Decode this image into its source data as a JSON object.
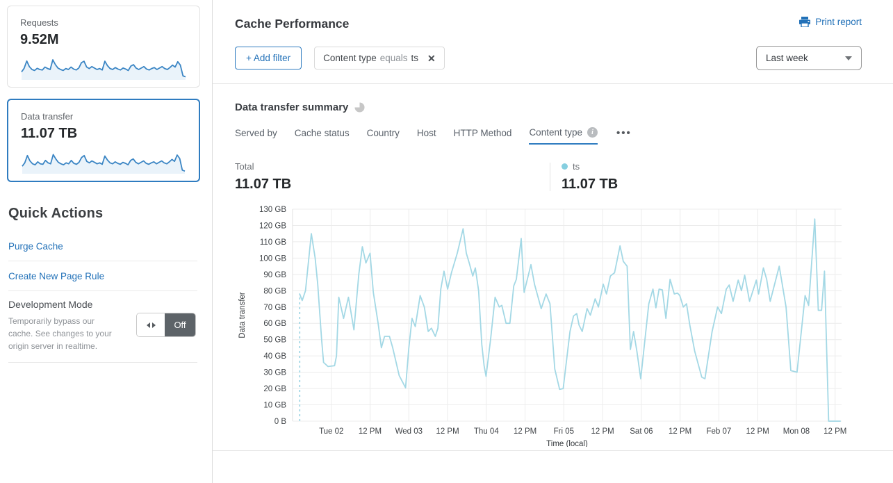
{
  "sidebar": {
    "requests_card": {
      "label": "Requests",
      "value": "9.52M",
      "sparkline": [
        30,
        45,
        75,
        52,
        40,
        36,
        45,
        40,
        38,
        50,
        44,
        40,
        80,
        60,
        46,
        40,
        36,
        44,
        40,
        50,
        42,
        38,
        46,
        68,
        74,
        50,
        44,
        52,
        46,
        40,
        44,
        38,
        74,
        56,
        44,
        40,
        48,
        42,
        38,
        46,
        42,
        36,
        54,
        60,
        46,
        40,
        46,
        52,
        42,
        38,
        44,
        48,
        40,
        46,
        52,
        44,
        40,
        48,
        58,
        50,
        72,
        58,
        14,
        10
      ]
    },
    "data_transfer_card": {
      "label": "Data transfer",
      "value": "11.07 TB",
      "selected": true,
      "sparkline": [
        28,
        42,
        72,
        50,
        38,
        34,
        46,
        38,
        36,
        52,
        42,
        38,
        76,
        58,
        44,
        38,
        34,
        42,
        38,
        52,
        40,
        36,
        44,
        64,
        72,
        48,
        42,
        50,
        44,
        38,
        42,
        36,
        70,
        54,
        42,
        38,
        46,
        40,
        36,
        44,
        40,
        34,
        52,
        58,
        44,
        38,
        44,
        50,
        40,
        36,
        42,
        46,
        38,
        44,
        50,
        42,
        38,
        46,
        56,
        48,
        74,
        60,
        12,
        8
      ]
    },
    "quick_actions": {
      "title": "Quick Actions",
      "links": [
        "Purge Cache",
        "Create New Page Rule"
      ],
      "dev_mode": {
        "title": "Development Mode",
        "description": "Temporarily bypass our cache. See changes to your origin server in realtime.",
        "toggle_state": "Off"
      }
    }
  },
  "header": {
    "title": "Cache Performance",
    "print_label": "Print report"
  },
  "filters": {
    "add_label": "+ Add filter",
    "chip": {
      "field": "Content type",
      "operator": "equals",
      "value": "ts"
    },
    "time_range": "Last week"
  },
  "summary": {
    "title": "Data transfer summary",
    "tabs": [
      {
        "label": "Served by"
      },
      {
        "label": "Cache status"
      },
      {
        "label": "Country"
      },
      {
        "label": "Host"
      },
      {
        "label": "HTTP Method"
      },
      {
        "label": "Content type",
        "active": true,
        "has_info": true
      }
    ],
    "more_label": "•••",
    "totals": {
      "total_label": "Total",
      "total_value": "11.07 TB",
      "series_label": "ts",
      "series_value": "11.07 TB"
    }
  },
  "colors": {
    "accent_blue": "#2271b8",
    "selected_border": "#2f7cc0",
    "chart_line": "#a3d8e5",
    "legend_dot": "#86cfe0",
    "sparkline_stroke": "#3a85c4",
    "sparkline_fill": "#eaf3fa",
    "grid": "#ececec"
  },
  "chart_data": {
    "type": "line",
    "title": "Data transfer summary — ts",
    "xlabel": "Time (local)",
    "ylabel": "Data transfer",
    "x_unit": "hours from start of week shown",
    "xlim": [
      -2,
      168
    ],
    "ylim": [
      0,
      130
    ],
    "grid": true,
    "dashed_start": true,
    "xticks": [
      {
        "hour": 10,
        "label": "Tue 02"
      },
      {
        "hour": 22,
        "label": "12 PM"
      },
      {
        "hour": 34,
        "label": "Wed 03"
      },
      {
        "hour": 46,
        "label": "12 PM"
      },
      {
        "hour": 58,
        "label": "Thu 04"
      },
      {
        "hour": 70,
        "label": "12 PM"
      },
      {
        "hour": 82,
        "label": "Fri 05"
      },
      {
        "hour": 94,
        "label": "12 PM"
      },
      {
        "hour": 106,
        "label": "Sat 06"
      },
      {
        "hour": 118,
        "label": "12 PM"
      },
      {
        "hour": 130,
        "label": "Feb 07"
      },
      {
        "hour": 142,
        "label": "12 PM"
      },
      {
        "hour": 154,
        "label": "Mon 08"
      },
      {
        "hour": 166,
        "label": "12 PM"
      }
    ],
    "yticks": [
      {
        "value": 130,
        "label": "130 GB"
      },
      {
        "value": 120,
        "label": "120 GB"
      },
      {
        "value": 110,
        "label": "110 GB"
      },
      {
        "value": 100,
        "label": "100 GB"
      },
      {
        "value": 90,
        "label": "90 GB"
      },
      {
        "value": 80,
        "label": "80 GB"
      },
      {
        "value": 70,
        "label": "70 GB"
      },
      {
        "value": 60,
        "label": "60 GB"
      },
      {
        "value": 50,
        "label": "50 GB"
      },
      {
        "value": 40,
        "label": "40 GB"
      },
      {
        "value": 30,
        "label": "30 GB"
      },
      {
        "value": 20,
        "label": "20 GB"
      },
      {
        "value": 10,
        "label": "10 GB"
      },
      {
        "value": 0,
        "label": "0 B"
      }
    ],
    "series": [
      {
        "name": "ts",
        "unit": "GB",
        "color": "#a3d8e5",
        "points": [
          [
            0.2,
            78
          ],
          [
            1,
            74
          ],
          [
            2,
            80
          ],
          [
            3.8,
            115
          ],
          [
            5,
            100
          ],
          [
            5.8,
            84
          ],
          [
            7,
            50
          ],
          [
            7.6,
            36
          ],
          [
            9,
            33.5
          ],
          [
            11,
            34
          ],
          [
            11.6,
            40
          ],
          [
            12.3,
            76
          ],
          [
            13.8,
            63
          ],
          [
            15.3,
            76
          ],
          [
            17,
            56
          ],
          [
            18.5,
            90
          ],
          [
            19.6,
            107
          ],
          [
            20.7,
            97
          ],
          [
            22,
            103
          ],
          [
            23,
            79
          ],
          [
            24.5,
            60
          ],
          [
            25.5,
            45
          ],
          [
            26.5,
            52
          ],
          [
            28,
            52
          ],
          [
            29,
            45
          ],
          [
            31,
            28
          ],
          [
            33,
            20.5
          ],
          [
            34,
            45
          ],
          [
            35,
            63
          ],
          [
            36,
            58
          ],
          [
            37.5,
            77
          ],
          [
            38.8,
            70
          ],
          [
            40,
            55
          ],
          [
            41,
            57
          ],
          [
            42.2,
            52
          ],
          [
            43,
            57
          ],
          [
            43.9,
            81
          ],
          [
            44.9,
            92
          ],
          [
            46,
            81
          ],
          [
            47.2,
            91
          ],
          [
            49,
            103
          ],
          [
            50.8,
            118
          ],
          [
            51.8,
            103
          ],
          [
            52.7,
            97
          ],
          [
            53.8,
            89
          ],
          [
            54.6,
            94
          ],
          [
            55.6,
            80
          ],
          [
            56.6,
            47
          ],
          [
            57.3,
            34
          ],
          [
            57.9,
            27.5
          ],
          [
            59.3,
            50
          ],
          [
            60.7,
            76
          ],
          [
            62,
            70
          ],
          [
            62.8,
            71
          ],
          [
            64.1,
            60
          ],
          [
            65.3,
            60
          ],
          [
            66.5,
            83
          ],
          [
            67.3,
            87
          ],
          [
            68.8,
            112
          ],
          [
            69.7,
            79
          ],
          [
            71.8,
            96
          ],
          [
            72.9,
            84
          ],
          [
            75,
            69
          ],
          [
            76.5,
            78
          ],
          [
            77.7,
            72
          ],
          [
            79.2,
            32
          ],
          [
            80.7,
            19.5
          ],
          [
            81.8,
            20
          ],
          [
            83.9,
            55
          ],
          [
            85,
            64.5
          ],
          [
            86,
            66
          ],
          [
            86.7,
            59
          ],
          [
            87.7,
            55
          ],
          [
            89.2,
            69
          ],
          [
            90.2,
            65
          ],
          [
            91.7,
            75
          ],
          [
            92.7,
            70
          ],
          [
            94.2,
            84
          ],
          [
            95.2,
            78
          ],
          [
            96.4,
            89
          ],
          [
            97.7,
            91
          ],
          [
            99.4,
            107.5
          ],
          [
            100.4,
            98
          ],
          [
            101.6,
            95
          ],
          [
            102.6,
            44
          ],
          [
            103.6,
            55
          ],
          [
            104.6,
            43
          ],
          [
            105.8,
            26
          ],
          [
            108.3,
            72
          ],
          [
            109.6,
            81
          ],
          [
            110.5,
            69.5
          ],
          [
            111.5,
            81
          ],
          [
            112.5,
            80.5
          ],
          [
            113.6,
            63
          ],
          [
            114.9,
            87
          ],
          [
            116.2,
            78
          ],
          [
            117.2,
            78.5
          ],
          [
            117.9,
            77
          ],
          [
            119,
            70
          ],
          [
            120,
            72
          ],
          [
            121,
            59
          ],
          [
            122.5,
            43
          ],
          [
            124.7,
            27
          ],
          [
            125.7,
            26
          ],
          [
            127.9,
            55
          ],
          [
            129.6,
            70
          ],
          [
            130.8,
            66
          ],
          [
            132.3,
            81
          ],
          [
            133.2,
            83.5
          ],
          [
            134.4,
            73.5
          ],
          [
            136,
            86.5
          ],
          [
            137,
            80
          ],
          [
            138,
            89.5
          ],
          [
            139.5,
            73.5
          ],
          [
            141.6,
            86.5
          ],
          [
            142.3,
            78
          ],
          [
            143.8,
            94
          ],
          [
            144.8,
            87
          ],
          [
            145.9,
            73.5
          ],
          [
            148.7,
            95
          ],
          [
            150.8,
            70
          ],
          [
            152.3,
            31
          ],
          [
            154.2,
            30
          ],
          [
            156.7,
            77
          ],
          [
            157.8,
            71
          ],
          [
            159.7,
            124
          ],
          [
            160.8,
            68
          ],
          [
            161.8,
            68
          ],
          [
            162.7,
            92
          ],
          [
            164,
            0
          ],
          [
            167.6,
            0
          ]
        ]
      }
    ]
  }
}
